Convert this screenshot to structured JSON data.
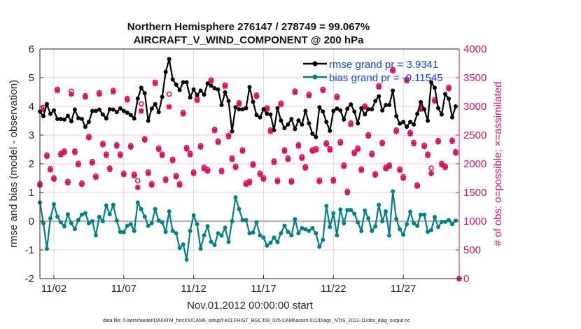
{
  "chart_data": {
    "type": "line",
    "title": [
      "Northern Hemisphere 276147 / 278749 = 99.067%",
      "AIRCRAFT_V_WIND_COMPONENT @ 200 hPa"
    ],
    "xlabel": "Nov.01,2012 00:00:00 start",
    "ylabel": "rmse and bias (model - observation)",
    "y2label": "# of obs: o=possible; ×=assimilated",
    "footer": "data file: /Users/raeder/DAI/ATM_forcXX/CAM6_setup/f.e21.FHIST_BGC.f09_025.CAM6assim.011/Diags_NTrS_2012-11/obs_diag_output.nc",
    "xlim": [
      0,
      30
    ],
    "ylim": [
      -2,
      6
    ],
    "y2lim": [
      0,
      4000
    ],
    "x_ticks": [
      {
        "value": 1,
        "label": "11/02"
      },
      {
        "value": 6,
        "label": "11/07"
      },
      {
        "value": 11,
        "label": "11/12"
      },
      {
        "value": 16,
        "label": "11/17"
      },
      {
        "value": 21,
        "label": "11/22"
      },
      {
        "value": 26,
        "label": "11/27"
      }
    ],
    "y_ticks": [
      "-2",
      "-1",
      "0",
      "1",
      "2",
      "3",
      "4",
      "5",
      "6"
    ],
    "y2_ticks": [
      "0",
      "500",
      "1000",
      "1500",
      "2000",
      "2500",
      "3000",
      "3500",
      "4000"
    ],
    "x_step_days": 0.25,
    "grid": true,
    "legend": {
      "placement": "top-right",
      "entries": [
        "rmse grand pr = 3.9341",
        "bias grand pr = -0.11545"
      ]
    },
    "colors": {
      "rmse": "#000000",
      "bias": "#008080",
      "obs": "#d6145a",
      "legend_text": "#1046f0",
      "zero_line": "#c0b4b8"
    },
    "series": [
      {
        "name": "rmse",
        "axis": "left",
        "values": [
          3.82,
          3.66,
          4.08,
          3.74,
          3.86,
          3.56,
          3.56,
          3.54,
          3.67,
          3.48,
          3.89,
          3.59,
          3.56,
          3.29,
          3.46,
          3.84,
          3.84,
          3.89,
          3.72,
          3.58,
          3.9,
          3.89,
          3.8,
          3.93,
          3.84,
          3.78,
          3.7,
          3.58,
          4.27,
          4.65,
          4.46,
          3.5,
          3.92,
          4.08,
          3.8,
          4.33,
          5.2,
          5.65,
          4.94,
          4.76,
          4.57,
          4.84,
          4.84,
          4.31,
          4.59,
          4.39,
          4.55,
          4.41,
          4.8,
          4.72,
          4.63,
          4.59,
          4.05,
          4.49,
          4.19,
          3.13,
          3.97,
          3.9,
          3.9,
          3.94,
          4.67,
          4.16,
          3.7,
          3.62,
          3.9,
          3.74,
          3.72,
          3.17,
          3.94,
          3.51,
          3.24,
          3.37,
          3.56,
          3.21,
          3.51,
          3.37,
          3.84,
          3.41,
          3.05,
          2.93,
          3.97,
          3.82,
          3.46,
          3.15,
          3.84,
          3.92,
          3.86,
          3.54,
          3.92,
          4.07,
          3.82,
          3.41,
          3.94,
          3.72,
          3.9,
          3.9,
          4.19,
          4.35,
          3.86,
          4.05,
          4.05,
          4.55,
          3.66,
          3.4,
          3.46,
          3.29,
          3.46,
          3.37,
          3.74,
          4.15,
          3.9,
          3.5,
          4.84,
          4.65,
          3.94,
          3.72,
          4.43,
          4.27,
          3.62,
          4.0
        ]
      },
      {
        "name": "bias",
        "axis": "left",
        "values": [
          0.65,
          -0.07,
          -0.96,
          0.1,
          0.59,
          0.16,
          -0.04,
          -0.18,
          0.24,
          -0.07,
          -0.27,
          0.04,
          0.23,
          0.28,
          -0.07,
          0,
          -0.49,
          0.15,
          0,
          0.55,
          0.24,
          0.57,
          0.02,
          -0.37,
          -0.38,
          -0.16,
          -0.1,
          -0.34,
          0.65,
          0.42,
          0.16,
          -0.16,
          -0.07,
          0.42,
          0.02,
          -0.04,
          -0.37,
          0.34,
          -0.34,
          -0.42,
          -0.93,
          -0.81,
          -1.34,
          -0.34,
          0.2,
          -0.1,
          -0.96,
          -0.49,
          -0.18,
          -0.72,
          -0.83,
          -0.42,
          -0.5,
          -0.23,
          -0.72,
          0,
          0.83,
          0.42,
          0.04,
          0.04,
          -0.42,
          -0.39,
          -0.04,
          -0.49,
          -0.57,
          -0.85,
          -0.75,
          -0.57,
          -0.73,
          -0.42,
          -0.16,
          -0.37,
          -0.49,
          0.07,
          -0.42,
          -0.24,
          -0.28,
          -0.34,
          -0.24,
          -0.42,
          -0.89,
          -0.65,
          0.53,
          -0.2,
          0.28,
          -0.49,
          0.41,
          -0.07,
          0.39,
          0.39,
          0.26,
          -0.04,
          -0.34,
          0.37,
          0.1,
          -0.34,
          -0.18,
          0.57,
          0,
          0.34,
          -0.5,
          1.04,
          0.08,
          -0.28,
          -0.47,
          -0.1,
          0.33,
          -0.07,
          -0.16,
          0.23,
          0.23,
          -0.37,
          -0.31,
          0.15,
          -0.2,
          -0.02,
          -0.02,
          0.04,
          -0.1,
          0.02
        ]
      },
      {
        "name": "obs assimilated",
        "axis": "right",
        "values": [
          1630,
          2943,
          2130,
          1894,
          1732,
          3276,
          2158,
          2199,
          1671,
          3215,
          2199,
          1984,
          1642,
          3163,
          2455,
          2016,
          1764,
          3215,
          2333,
          2146,
          1902,
          3256,
          2309,
          2146,
          1813,
          3114,
          2293,
          1793,
          1589,
          2919,
          2415,
          1833,
          1630,
          3398,
          2252,
          2146,
          1711,
          2992,
          2057,
          1772,
          1630,
          2870,
          2260,
          2158,
          1833,
          3106,
          2293,
          1915,
          1874,
          3439,
          2577,
          2374,
          1862,
          3350,
          2472,
          2077,
          1935,
          3041,
          2220,
          1642,
          1671,
          1976,
          3175,
          1813,
          1732,
          2951,
          2565,
          2024,
          1691,
          3033,
          2220,
          2077,
          1683,
          3244,
          2309,
          2098,
          1927,
          3187,
          2220,
          2240,
          1691,
          3276,
          2341,
          2240,
          1699,
          3154,
          2362,
          1955,
          1496,
          2687,
          2179,
          2252,
          1886,
          2984,
          2484,
          2158,
          1805,
          3337,
          2350,
          1915,
          1955,
          3622,
          2565,
          1886,
          1752,
          3447,
          2524,
          2350,
          1610,
          2951,
          2301,
          2146,
          1833,
          3093,
          2382,
          1984,
          1935,
          3309,
          2390,
          2187
        ]
      },
      {
        "name": "obs possible",
        "axis": "right",
        "values": [
          1630,
          2960,
          2130,
          1894,
          1732,
          3276,
          2158,
          2199,
          1671,
          3240,
          2199,
          1984,
          1642,
          3163,
          2455,
          2016,
          1764,
          3215,
          2333,
          2146,
          1902,
          3256,
          2309,
          2146,
          1813,
          3114,
          2293,
          1793,
          1680,
          3020,
          2415,
          1833,
          1630,
          3398,
          2252,
          2146,
          1711,
          3190,
          2057,
          1772,
          1630,
          2870,
          2260,
          2158,
          1833,
          3106,
          2293,
          1915,
          1874,
          3439,
          2577,
          2374,
          1862,
          3350,
          2472,
          2077,
          1935,
          3041,
          2220,
          1642,
          1671,
          1976,
          3175,
          1813,
          1732,
          2951,
          2565,
          2024,
          1691,
          3033,
          2220,
          2077,
          1683,
          3244,
          2309,
          2098,
          1927,
          3187,
          2220,
          2240,
          1691,
          3276,
          2341,
          2240,
          1699,
          3154,
          2362,
          1955,
          1496,
          2687,
          2179,
          2252,
          1886,
          2984,
          2484,
          2158,
          1805,
          3337,
          2350,
          1915,
          1955,
          3622,
          2565,
          1886,
          1752,
          3447,
          2524,
          2350,
          1610,
          2951,
          2301,
          2146,
          1900,
          3093,
          2382,
          1984,
          1935,
          3309,
          2390,
          2187
        ]
      }
    ],
    "end_point": {
      "x": 30,
      "value": 0
    }
  }
}
